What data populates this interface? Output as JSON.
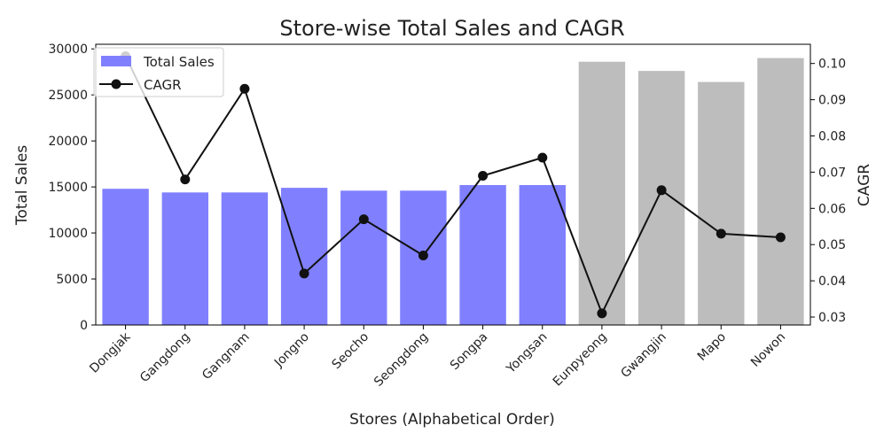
{
  "chart_data": {
    "type": "bar",
    "title": "Store-wise Total Sales and CAGR",
    "xlabel": "Stores (Alphabetical Order)",
    "ylabel": "Total Sales",
    "y2label": "CAGR",
    "categories": [
      "Dongjak",
      "Gangdong",
      "Gangnam",
      "Jongno",
      "Seocho",
      "Seongdong",
      "Songpa",
      "Yongsan",
      "Eunpyeong",
      "Gwangjin",
      "Mapo",
      "Nowon"
    ],
    "series": [
      {
        "name": "Total Sales",
        "type": "bar",
        "axis": "left",
        "values": [
          14800,
          14400,
          14400,
          14900,
          14600,
          14600,
          15200,
          15200,
          28600,
          27600,
          26400,
          29000
        ]
      },
      {
        "name": "CAGR",
        "type": "line",
        "axis": "right",
        "values": [
          0.102,
          0.068,
          0.093,
          0.042,
          0.057,
          0.047,
          0.069,
          0.074,
          0.031,
          0.065,
          0.053,
          0.052
        ]
      }
    ],
    "bar_colors": [
      "#8080ff",
      "#8080ff",
      "#8080ff",
      "#8080ff",
      "#8080ff",
      "#8080ff",
      "#8080ff",
      "#8080ff",
      "#bdbdbd",
      "#bdbdbd",
      "#bdbdbd",
      "#bdbdbd"
    ],
    "line_color": "#111111",
    "ylim": [
      0,
      30500
    ],
    "y2lim": [
      0.0278,
      0.1053
    ],
    "yticks": [
      "0",
      "5000",
      "10000",
      "15000",
      "20000",
      "25000",
      "30000"
    ],
    "y2ticks": [
      "0.03",
      "0.04",
      "0.05",
      "0.06",
      "0.07",
      "0.08",
      "0.09",
      "0.10"
    ],
    "legend": {
      "position": "top-left",
      "items": [
        "Total Sales",
        "CAGR"
      ]
    },
    "grid": false
  }
}
